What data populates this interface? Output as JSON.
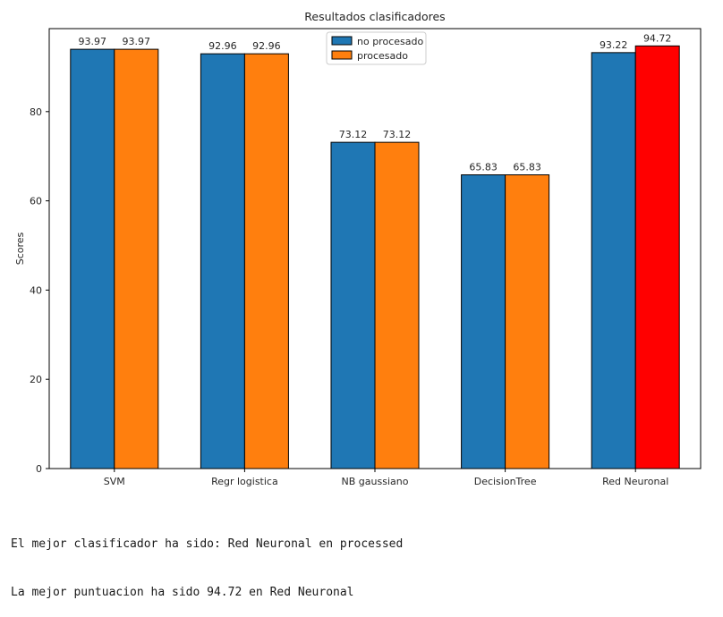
{
  "chart_data": {
    "type": "bar",
    "title": "Resultados clasificadores",
    "xlabel": "",
    "ylabel": "Scores",
    "categories": [
      "SVM",
      "Regr logistica",
      "NB gaussiano",
      "DecisionTree",
      "Red Neuronal"
    ],
    "series": [
      {
        "name": "no procesado",
        "color": "#1f77b4",
        "values": [
          93.97,
          92.96,
          73.12,
          65.83,
          93.22
        ],
        "labels": [
          "93.97",
          "92.96",
          "73.12",
          "65.83",
          "93.22"
        ]
      },
      {
        "name": "procesado",
        "color": "#ff7f0e",
        "highlight_color": "#ff0000",
        "highlight_index": 4,
        "values": [
          93.97,
          92.96,
          73.12,
          65.83,
          94.72
        ],
        "labels": [
          "93.97",
          "92.96",
          "73.12",
          "65.83",
          "94.72"
        ]
      }
    ],
    "ylim": [
      0,
      98.6
    ],
    "yticks": [
      0,
      20,
      40,
      60,
      80
    ],
    "ytick_labels": [
      "0",
      "20",
      "40",
      "60",
      "80"
    ],
    "grid": false,
    "legend": "top-center"
  },
  "output": {
    "line1": "El mejor clasificador ha sido: Red Neuronal en processed",
    "line2": "La mejor puntuacion ha sido 94.72 en Red Neuronal"
  }
}
